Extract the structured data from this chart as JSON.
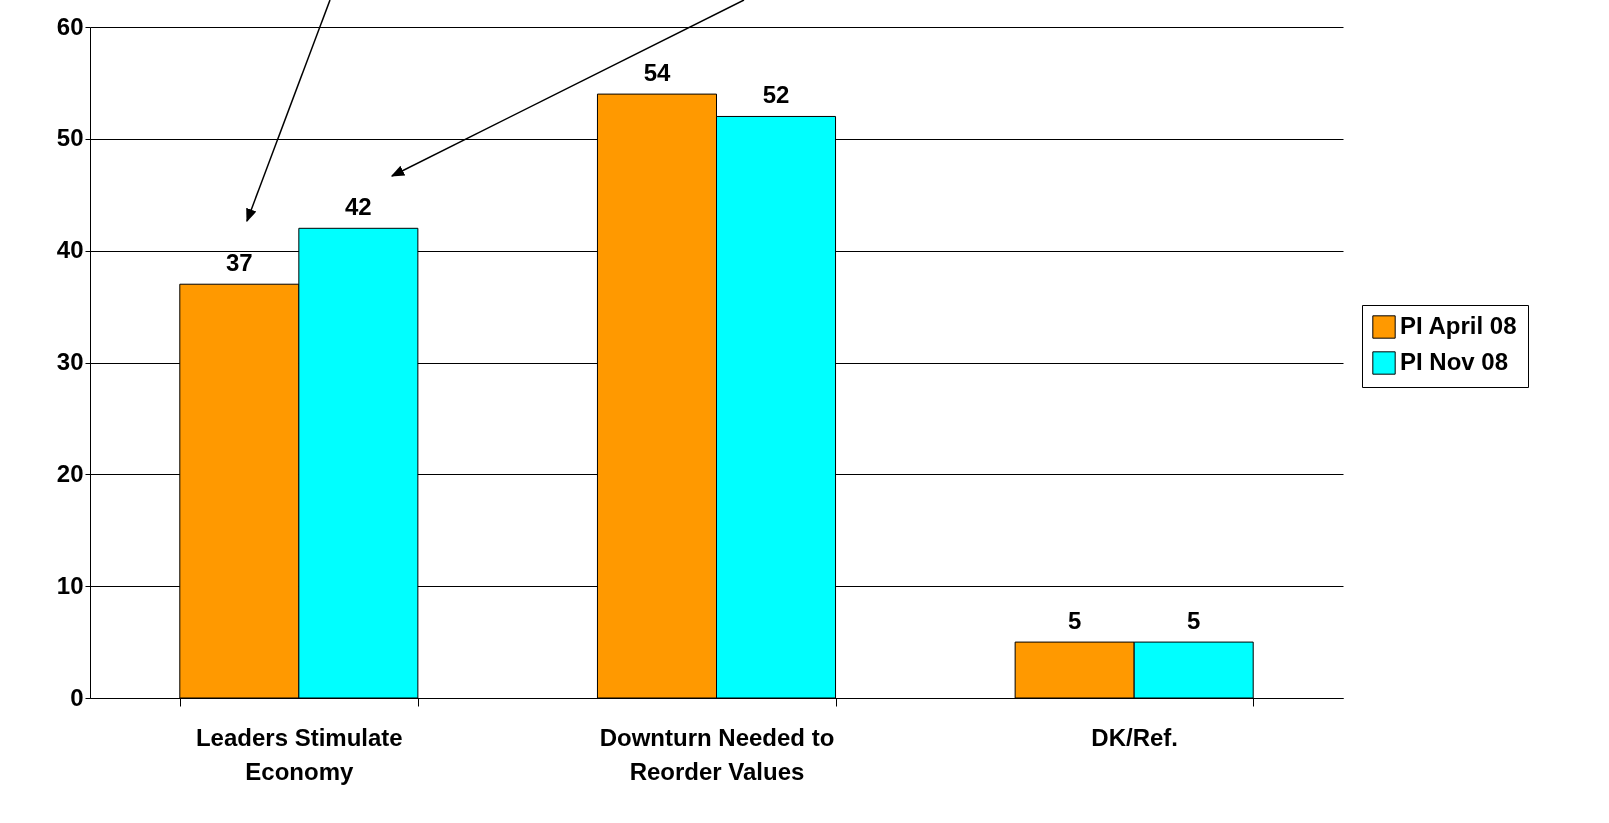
{
  "chart_data": {
    "type": "bar",
    "categories": [
      "Leaders Stimulate Economy",
      "Downturn Needed to Reorder Values",
      "DK/Ref."
    ],
    "series": [
      {
        "name": "PI April 08",
        "color": "#ff9900",
        "values": [
          37,
          54,
          5
        ]
      },
      {
        "name": "PI Nov 08",
        "color": "#00ffff",
        "values": [
          42,
          52,
          5
        ]
      }
    ],
    "ylim": [
      0,
      60
    ],
    "yticks": [
      0,
      10,
      20,
      30,
      40,
      50,
      60
    ],
    "grid": "y",
    "data_labels": true,
    "legend": "right"
  }
}
